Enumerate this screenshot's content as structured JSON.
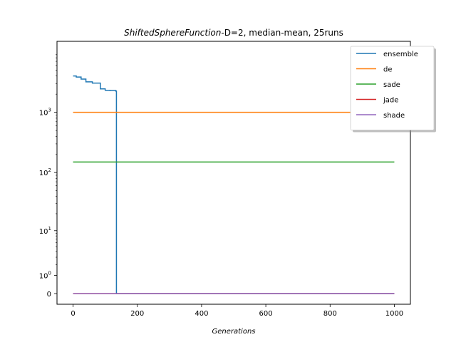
{
  "chart_data": {
    "type": "line",
    "title_italic": "ShiftedSphereFunction",
    "title_rest": "-D=2, median-mean, 25runs",
    "xlabel": "Generations",
    "ylabel": "",
    "y_scale": "symlog",
    "xlim": [
      -50,
      1050
    ],
    "ylim": [
      -0.5,
      15000
    ],
    "x_ticks": [
      0,
      200,
      400,
      600,
      800,
      1000
    ],
    "x_tick_labels": [
      "0",
      "200",
      "400",
      "600",
      "800",
      "1000"
    ],
    "y_ticks": [
      0,
      1,
      10,
      100,
      1000
    ],
    "y_tick_labels": [
      {
        "base": "0",
        "exp": ""
      },
      {
        "base": "10",
        "exp": "0"
      },
      {
        "base": "10",
        "exp": "1"
      },
      {
        "base": "10",
        "exp": "2"
      },
      {
        "base": "10",
        "exp": "3"
      }
    ],
    "legend_position": "top-right",
    "grid": false,
    "series": [
      {
        "name": "ensemble",
        "color": "#1f77b4",
        "step": true,
        "points": [
          [
            0,
            4000
          ],
          [
            10,
            3850
          ],
          [
            25,
            3550
          ],
          [
            40,
            3200
          ],
          [
            60,
            3050
          ],
          [
            85,
            2450
          ],
          [
            100,
            2320
          ],
          [
            115,
            2300
          ],
          [
            133,
            2250
          ],
          [
            135,
            0
          ],
          [
            1000,
            0
          ]
        ]
      },
      {
        "name": "de",
        "color": "#ff7f0e",
        "step": false,
        "points": [
          [
            0,
            1000
          ],
          [
            1000,
            1000
          ]
        ]
      },
      {
        "name": "sade",
        "color": "#2ca02c",
        "step": false,
        "points": [
          [
            0,
            150
          ],
          [
            1000,
            150
          ]
        ]
      },
      {
        "name": "jade",
        "color": "#d62728",
        "step": false,
        "points": [
          [
            0,
            0
          ],
          [
            1000,
            0
          ]
        ]
      },
      {
        "name": "shade",
        "color": "#9467bd",
        "step": false,
        "points": [
          [
            0,
            0
          ],
          [
            1000,
            0
          ]
        ]
      }
    ]
  }
}
